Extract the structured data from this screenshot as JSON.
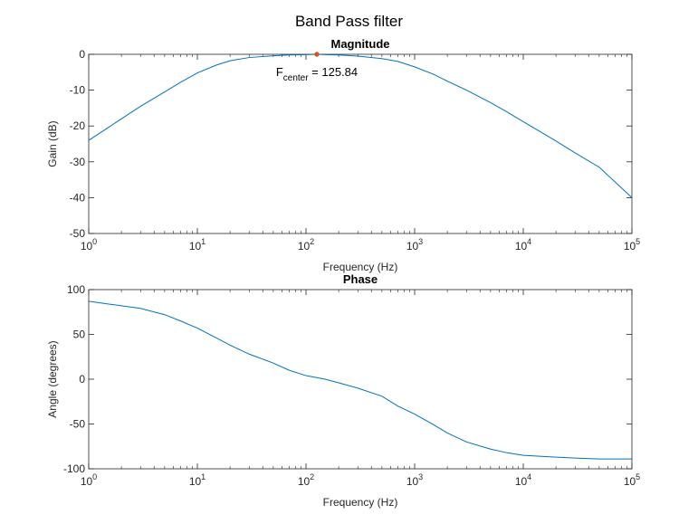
{
  "figure": {
    "title": "Band Pass filter"
  },
  "chart_data": [
    {
      "type": "line",
      "title": "Magnitude",
      "xlabel": "Frequency (Hz)",
      "ylabel": "Gain (dB)",
      "xscale": "log",
      "xlim": [
        1,
        100000
      ],
      "ylim": [
        -50,
        0
      ],
      "xticks": [
        1,
        10,
        100,
        1000,
        10000,
        100000
      ],
      "xtick_labels": [
        "10^0",
        "10^1",
        "10^2",
        "10^3",
        "10^4",
        "10^5"
      ],
      "yticks": [
        0,
        -10,
        -20,
        -30,
        -40,
        -50
      ],
      "ytick_labels": [
        "0",
        "-10",
        "-20",
        "-30",
        "-40",
        "-50"
      ],
      "grid": false,
      "series_color": "#0072BD",
      "marker_color": "#D95319",
      "series": [
        {
          "x": [
            1,
            1.5,
            2,
            3,
            5,
            7,
            10,
            15,
            20,
            30,
            50,
            70,
            100,
            125.84,
            150,
            200,
            300,
            500,
            700,
            1000,
            1500,
            2000,
            3000,
            5000,
            7000,
            10000,
            20000,
            30000,
            50000,
            100000
          ],
          "y": [
            -24,
            -20.5,
            -18,
            -14.5,
            -10.5,
            -7.8,
            -5.2,
            -3.0,
            -1.8,
            -0.9,
            -0.4,
            -0.2,
            -0.1,
            0,
            -0.1,
            -0.2,
            -0.5,
            -1.2,
            -2.0,
            -3.5,
            -5.6,
            -7.5,
            -10.0,
            -13.5,
            -16.0,
            -18.8,
            -24.2,
            -27.5,
            -31.5,
            -40.0
          ]
        }
      ],
      "annotation": {
        "marker": {
          "x": 125.84,
          "y": 0
        },
        "text_main": "F",
        "text_sub": "center",
        "text_value": " = 125.84"
      }
    },
    {
      "type": "line",
      "title": "Phase",
      "xlabel": "Frequency (Hz)",
      "ylabel": "Angle (degrees)",
      "xscale": "log",
      "xlim": [
        1,
        100000
      ],
      "ylim": [
        -100,
        100
      ],
      "xticks": [
        1,
        10,
        100,
        1000,
        10000,
        100000
      ],
      "xtick_labels": [
        "10^0",
        "10^1",
        "10^2",
        "10^3",
        "10^4",
        "10^5"
      ],
      "yticks": [
        100,
        50,
        0,
        -50,
        -100
      ],
      "ytick_labels": [
        "100",
        "50",
        "0",
        "-50",
        "-100"
      ],
      "grid": false,
      "series_color": "#0072BD",
      "series": [
        {
          "x": [
            1,
            1.5,
            2,
            3,
            5,
            7,
            10,
            15,
            20,
            30,
            50,
            70,
            100,
            150,
            200,
            300,
            500,
            700,
            1000,
            1500,
            2000,
            3000,
            5000,
            7000,
            10000,
            20000,
            30000,
            50000,
            100000
          ],
          "y": [
            87,
            84,
            82,
            79,
            72,
            65,
            57,
            46,
            38,
            28,
            18,
            10,
            4,
            0,
            -4,
            -10,
            -19,
            -30,
            -39,
            -51,
            -60,
            -70,
            -78,
            -82,
            -85,
            -87,
            -88,
            -89,
            -89
          ]
        }
      ]
    }
  ]
}
